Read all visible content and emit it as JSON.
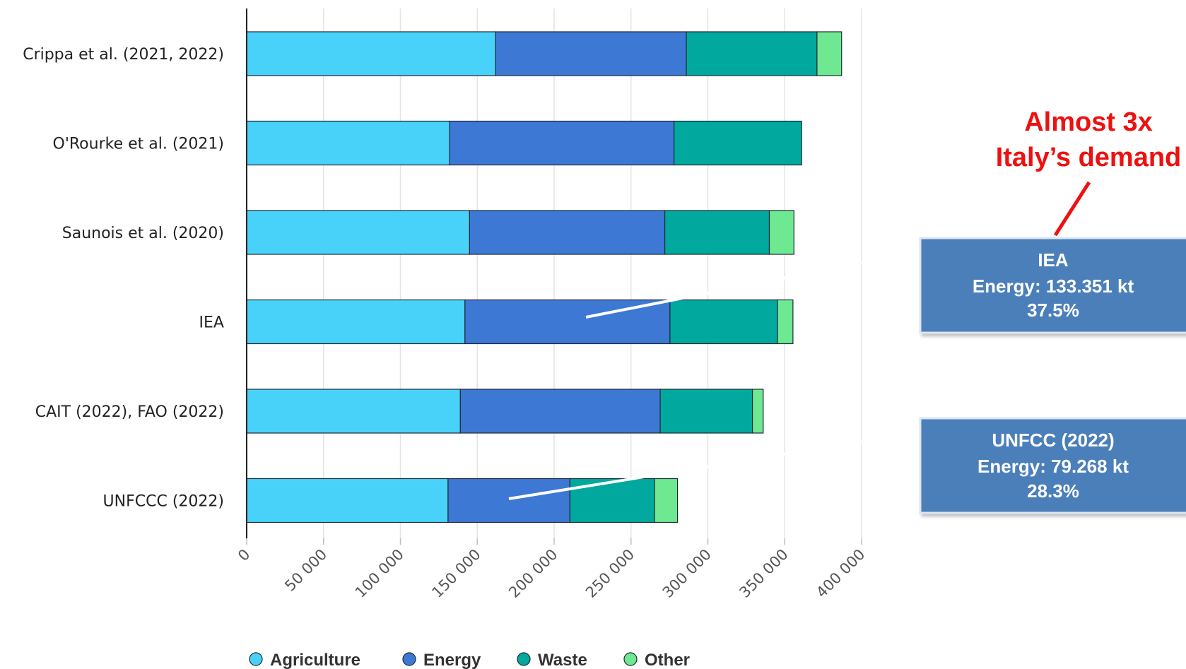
{
  "chart_data": {
    "type": "bar",
    "orientation": "horizontal",
    "stacked": true,
    "categories": [
      "Crippa et al. (2021, 2022)",
      "O'Rourke et al. (2021)",
      "Saunois et al. (2020)",
      "IEA",
      "CAIT (2022), FAO (2022)",
      "UNFCCC (2022)"
    ],
    "series": [
      {
        "name": "Agriculture",
        "values": [
          162000,
          132000,
          145000,
          142000,
          139000,
          131000
        ]
      },
      {
        "name": "Energy",
        "values": [
          124000,
          146000,
          127000,
          133351,
          130000,
          79268
        ]
      },
      {
        "name": "Waste",
        "values": [
          85000,
          83000,
          68000,
          70000,
          60000,
          55000
        ]
      },
      {
        "name": "Other",
        "values": [
          16000,
          0,
          16000,
          10000,
          7000,
          15000
        ]
      }
    ],
    "xlim": [
      0,
      400000
    ],
    "ticks": [
      "0",
      "50 000",
      "100 000",
      "150 000",
      "200 000",
      "250 000",
      "300 000",
      "350 000",
      "400 000"
    ],
    "grid": true,
    "legend_position": "bottom"
  },
  "colors": {
    "Agriculture": "#48d2fa",
    "Energy": "#3d78d4",
    "Waste": "#00a89d",
    "Other": "#6ee891",
    "callout_box": "#4c7fba",
    "headline": "#ee1111"
  },
  "legend": [
    "Agriculture",
    "Energy",
    "Waste",
    "Other"
  ],
  "annotations": {
    "headline": [
      "Almost 3x",
      "Italy’s demand"
    ],
    "iea_box": [
      "IEA",
      "Energy: 133.351 kt",
      "37.5%"
    ],
    "unfccc_box": [
      "UNFCC (2022)",
      "Energy: 79.268 kt",
      "28.3%"
    ]
  }
}
